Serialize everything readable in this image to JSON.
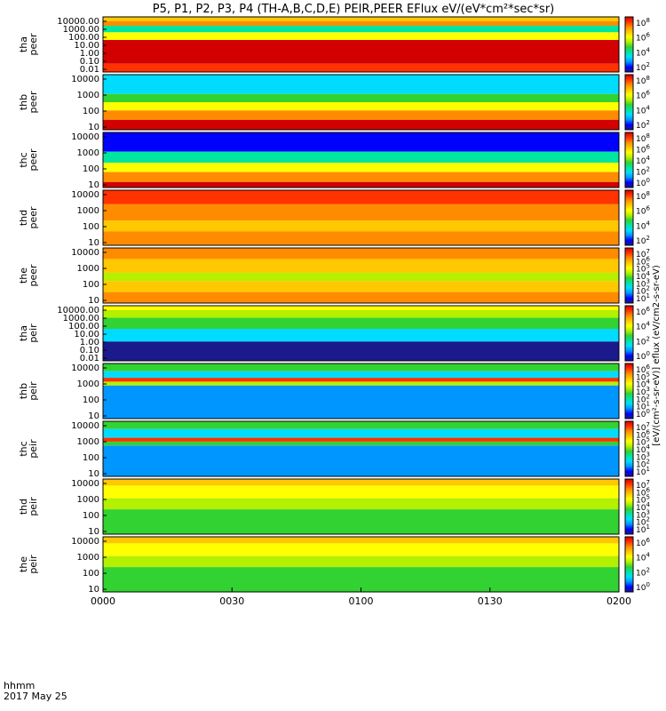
{
  "title": "P5, P1, P2, P3, P4 (TH-A,B,C,D,E) PEIR,PEER EFlux eV/(eV*cm²*sec*sr)",
  "xaxis": {
    "row_label": "hhmm",
    "date_label": "2017 May 25",
    "tick_labels": [
      "0000",
      "0030",
      "0100",
      "0130",
      "0200"
    ],
    "range_minutes": [
      0,
      120
    ]
  },
  "colorbar_unit_label": "[eV/(cm²-s-sr-eV)] eflux (eV/cm2-s-sr-eV)",
  "colors": {
    "palette": [
      "#000000",
      "#1a1a8c",
      "#0000ff",
      "#0096ff",
      "#00dcff",
      "#00e6a0",
      "#32d232",
      "#b4f000",
      "#ffff00",
      "#ffc800",
      "#ff8c00",
      "#ff3200",
      "#d20000"
    ]
  },
  "chart_data": [
    {
      "type": "heatmap",
      "id": "tha-peer",
      "ylabel": [
        "tha",
        "peer"
      ],
      "y_tick_labels": [
        "10000.00",
        "1000.00",
        "100.00",
        "10.00",
        "1.00",
        "0.10",
        "0.01"
      ],
      "colorbar_ticks": [
        "10^8",
        "10^6",
        "10^4",
        "10^2"
      ],
      "bands": [
        {
          "y": [
            0.0,
            0.08
          ],
          "level": 9
        },
        {
          "y": [
            0.08,
            0.16
          ],
          "level": 10
        },
        {
          "y": [
            0.16,
            0.28
          ],
          "level": 5
        },
        {
          "y": [
            0.28,
            0.42
          ],
          "level": 8
        },
        {
          "y": [
            0.42,
            0.85
          ],
          "level": 12
        },
        {
          "y": [
            0.85,
            1.0
          ],
          "level": 11
        }
      ]
    },
    {
      "type": "heatmap",
      "id": "thb-peer",
      "ylabel": [
        "thb",
        "peer"
      ],
      "y_tick_labels": [
        "10000",
        "1000",
        "100",
        "10"
      ],
      "colorbar_ticks": [
        "10^8",
        "10^6",
        "10^4",
        "10^2"
      ],
      "bands": [
        {
          "y": [
            0.0,
            0.35
          ],
          "level": 4
        },
        {
          "y": [
            0.35,
            0.5
          ],
          "level": 6
        },
        {
          "y": [
            0.5,
            0.65
          ],
          "level": 8
        },
        {
          "y": [
            0.65,
            0.82
          ],
          "level": 10
        },
        {
          "y": [
            0.82,
            1.0
          ],
          "level": 12
        }
      ]
    },
    {
      "type": "heatmap",
      "id": "thc-peer",
      "ylabel": [
        "thc",
        "peer"
      ],
      "y_tick_labels": [
        "10000",
        "1000",
        "100",
        "10"
      ],
      "colorbar_ticks": [
        "10^8",
        "10^6",
        "10^4",
        "10^2",
        "10^0"
      ],
      "bands": [
        {
          "y": [
            0.0,
            0.35
          ],
          "level": 2
        },
        {
          "y": [
            0.35,
            0.55
          ],
          "level": 5
        },
        {
          "y": [
            0.55,
            0.72
          ],
          "level": 8
        },
        {
          "y": [
            0.72,
            0.9
          ],
          "level": 10
        },
        {
          "y": [
            0.9,
            1.0
          ],
          "level": 12
        }
      ]
    },
    {
      "type": "heatmap",
      "id": "thd-peer",
      "ylabel": [
        "thd",
        "peer"
      ],
      "y_tick_labels": [
        "10000",
        "1000",
        "100",
        "10"
      ],
      "colorbar_ticks": [
        "10^8",
        "10^6",
        "10^4",
        "10^2"
      ],
      "bands": [
        {
          "y": [
            0.0,
            0.25
          ],
          "level": 11
        },
        {
          "y": [
            0.25,
            0.55
          ],
          "level": 10
        },
        {
          "y": [
            0.55,
            0.75
          ],
          "level": 9
        },
        {
          "y": [
            0.75,
            1.0
          ],
          "level": 10
        }
      ]
    },
    {
      "type": "heatmap",
      "id": "the-peer",
      "ylabel": [
        "the",
        "peer"
      ],
      "y_tick_labels": [
        "10000",
        "1000",
        "100",
        "10"
      ],
      "colorbar_ticks": [
        "10^7",
        "10^6",
        "10^5",
        "10^4",
        "10^3",
        "10^2",
        "10^1"
      ],
      "bands": [
        {
          "y": [
            0.0,
            0.2
          ],
          "level": 10
        },
        {
          "y": [
            0.2,
            0.45
          ],
          "level": 9
        },
        {
          "y": [
            0.45,
            0.6
          ],
          "level": 7
        },
        {
          "y": [
            0.6,
            0.8
          ],
          "level": 9
        },
        {
          "y": [
            0.8,
            1.0
          ],
          "level": 10
        }
      ]
    },
    {
      "type": "heatmap",
      "id": "tha-peir",
      "ylabel": [
        "tha",
        "peir"
      ],
      "y_tick_labels": [
        "10000.00",
        "1000.00",
        "100.00",
        "10.00",
        "1.00",
        "0.10",
        "0.01"
      ],
      "colorbar_ticks": [
        "10^6",
        "10^4",
        "10^2",
        "10^0"
      ],
      "bands": [
        {
          "y": [
            0.0,
            0.08
          ],
          "level": 8
        },
        {
          "y": [
            0.08,
            0.22
          ],
          "level": 7
        },
        {
          "y": [
            0.22,
            0.42
          ],
          "level": 6
        },
        {
          "y": [
            0.42,
            0.65
          ],
          "level": 4
        },
        {
          "y": [
            0.65,
            1.0
          ],
          "level": 1
        }
      ]
    },
    {
      "type": "heatmap",
      "id": "thb-peir",
      "ylabel": [
        "thb",
        "peir"
      ],
      "y_tick_labels": [
        "10000",
        "1000",
        "100",
        "10"
      ],
      "colorbar_ticks": [
        "10^6",
        "10^5",
        "10^4",
        "10^3",
        "10^2",
        "10^1",
        "10^0"
      ],
      "bands": [
        {
          "y": [
            0.0,
            0.14
          ],
          "level": 6
        },
        {
          "y": [
            0.14,
            0.26
          ],
          "level": 4
        },
        {
          "y": [
            0.26,
            0.33
          ],
          "level": 11
        },
        {
          "y": [
            0.33,
            0.4
          ],
          "level": 7
        },
        {
          "y": [
            0.4,
            1.0
          ],
          "level": 3
        }
      ]
    },
    {
      "type": "heatmap",
      "id": "thc-peir",
      "ylabel": [
        "thc",
        "peir"
      ],
      "y_tick_labels": [
        "10000",
        "1000",
        "100",
        "10"
      ],
      "colorbar_ticks": [
        "10^7",
        "10^6",
        "10^5",
        "10^4",
        "10^3",
        "10^2",
        "10^1"
      ],
      "bands": [
        {
          "y": [
            0.0,
            0.14
          ],
          "level": 6
        },
        {
          "y": [
            0.14,
            0.3
          ],
          "level": 4
        },
        {
          "y": [
            0.3,
            0.37
          ],
          "level": 11
        },
        {
          "y": [
            0.37,
            0.44
          ],
          "level": 6
        },
        {
          "y": [
            0.44,
            1.0
          ],
          "level": 3
        }
      ]
    },
    {
      "type": "heatmap",
      "id": "thd-peir",
      "ylabel": [
        "thd",
        "peir"
      ],
      "y_tick_labels": [
        "10000",
        "1000",
        "100",
        "10"
      ],
      "colorbar_ticks": [
        "10^7",
        "10^6",
        "10^5",
        "10^4",
        "10^3",
        "10^2",
        "10^1"
      ],
      "bands": [
        {
          "y": [
            0.0,
            0.12
          ],
          "level": 9
        },
        {
          "y": [
            0.12,
            0.35
          ],
          "level": 8
        },
        {
          "y": [
            0.35,
            0.55
          ],
          "level": 7
        },
        {
          "y": [
            0.55,
            1.0
          ],
          "level": 6
        }
      ]
    },
    {
      "type": "heatmap",
      "id": "the-peir",
      "ylabel": [
        "the",
        "peir"
      ],
      "y_tick_labels": [
        "10000",
        "1000",
        "100",
        "10"
      ],
      "colorbar_ticks": [
        "10^6",
        "10^4",
        "10^2",
        "10^0"
      ],
      "bands": [
        {
          "y": [
            0.0,
            0.12
          ],
          "level": 9
        },
        {
          "y": [
            0.12,
            0.35
          ],
          "level": 8
        },
        {
          "y": [
            0.35,
            0.55
          ],
          "level": 7
        },
        {
          "y": [
            0.55,
            1.0
          ],
          "level": 6
        }
      ]
    }
  ]
}
